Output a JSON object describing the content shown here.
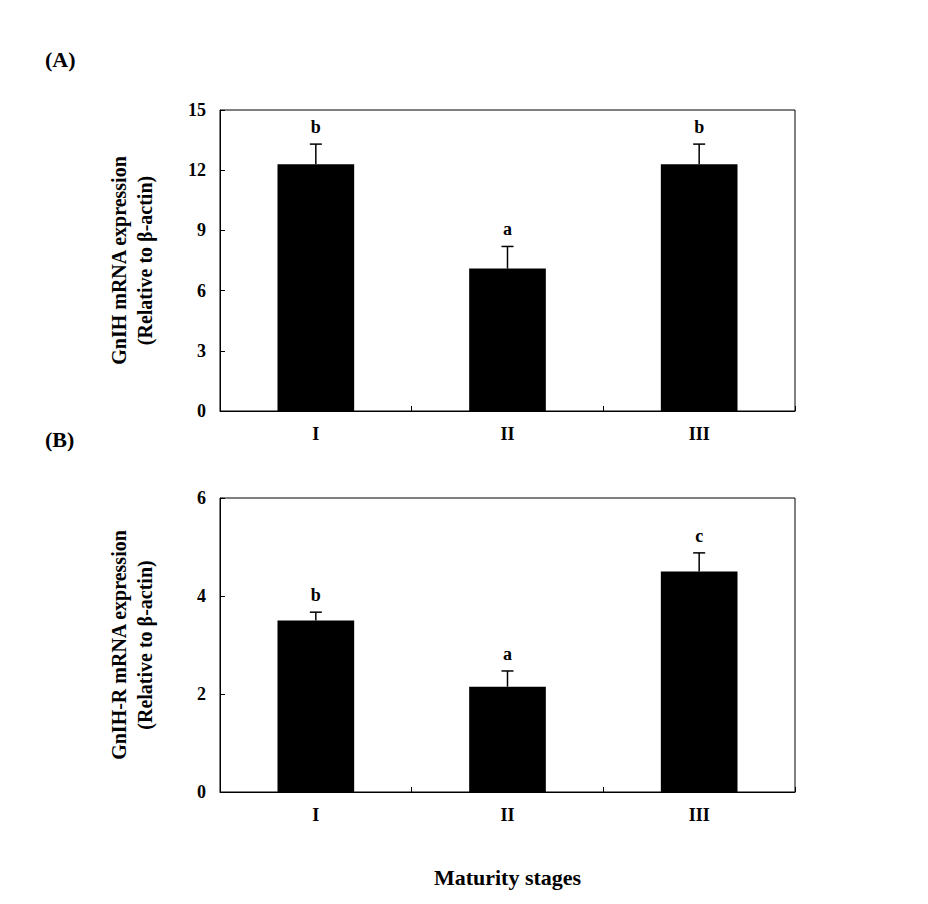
{
  "chart_data": [
    {
      "type": "bar",
      "panel": "(A)",
      "ylabel": "GnIH mRNA expression\n(Relative to β-actin)",
      "categories": [
        "I",
        "II",
        "III"
      ],
      "values": [
        12.3,
        7.1,
        12.3
      ],
      "errors": [
        1.0,
        1.1,
        1.0
      ],
      "letters": [
        "b",
        "a",
        "b"
      ],
      "color": "#000000",
      "ylim": [
        0,
        15
      ],
      "yticks": [
        0,
        3,
        6,
        9,
        12,
        15
      ],
      "grid": false
    },
    {
      "type": "bar",
      "panel": "(B)",
      "ylabel": "GnIH-R mRNA expression\n(Relative to β-actin)",
      "xlabel": "Maturity stages",
      "categories": [
        "I",
        "II",
        "III"
      ],
      "values": [
        3.5,
        2.15,
        4.5
      ],
      "errors": [
        0.17,
        0.32,
        0.38
      ],
      "letters": [
        "b",
        "a",
        "c"
      ],
      "color": "#000000",
      "ylim": [
        0,
        6
      ],
      "yticks": [
        0,
        2,
        4,
        6
      ],
      "grid": false
    }
  ]
}
